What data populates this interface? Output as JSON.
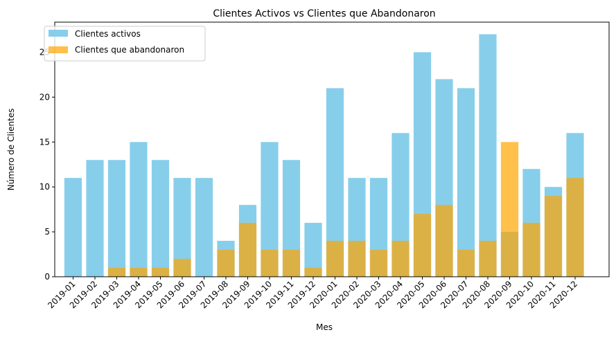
{
  "chart_data": {
    "type": "bar",
    "title": "Clientes Activos vs Clientes que Abandonaron",
    "xlabel": "Mes",
    "ylabel": "Número de Clientes",
    "ylim": [
      0,
      28.35
    ],
    "yticks": [
      0,
      5,
      10,
      15,
      20,
      25
    ],
    "legend_position": "top-left",
    "grid": false,
    "categories": [
      "2019-01",
      "2019-02",
      "2019-03",
      "2019-04",
      "2019-05",
      "2019-06",
      "2019-07",
      "2019-08",
      "2019-09",
      "2019-10",
      "2019-11",
      "2019-12",
      "2020-01",
      "2020-02",
      "2020-03",
      "2020-04",
      "2020-05",
      "2020-06",
      "2020-07",
      "2020-08",
      "2020-09",
      "2020-10",
      "2020-11",
      "2020-12"
    ],
    "series": [
      {
        "name": "Clientes activos",
        "color": "#87ceeb",
        "opacity": 1.0,
        "values": [
          11,
          13,
          13,
          15,
          13,
          11,
          11,
          4,
          8,
          15,
          13,
          6,
          21,
          11,
          11,
          16,
          25,
          22,
          21,
          27,
          5,
          12,
          10,
          16
        ]
      },
      {
        "name": "Clientes que abandonaron",
        "color": "#ffa500",
        "opacity": 0.7,
        "values": [
          0,
          0,
          1,
          1,
          1,
          2,
          0,
          3,
          6,
          3,
          3,
          1,
          4,
          4,
          3,
          4,
          7,
          8,
          3,
          4,
          15,
          6,
          9,
          11
        ]
      }
    ]
  }
}
